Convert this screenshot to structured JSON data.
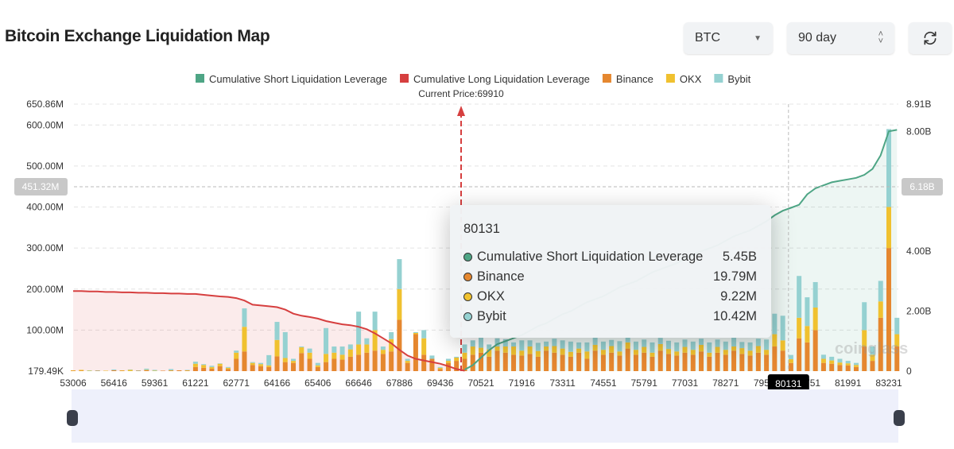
{
  "header": {
    "title": "Bitcoin Exchange Liquidation Map",
    "coin": "BTC",
    "range": "90 day",
    "refresh_icon": "refresh-icon"
  },
  "tooltip": {
    "price": "80131",
    "rows": [
      {
        "label": "Cumulative Short Liquidation Leverage",
        "value": "5.45B",
        "color": "#4ea585"
      },
      {
        "label": "Binance",
        "value": "19.79M",
        "color": "#e5872f"
      },
      {
        "label": "OKX",
        "value": "9.22M",
        "color": "#f0c12f"
      },
      {
        "label": "Bybit",
        "value": "10.42M",
        "color": "#95d1d1"
      }
    ]
  },
  "chart_data": {
    "type": "bar",
    "legend": [
      {
        "name": "Cumulative Short Liquidation Leverage",
        "color": "#4ea585"
      },
      {
        "name": "Cumulative Long Liquidation Leverage",
        "color": "#d63f3f"
      },
      {
        "name": "Binance",
        "color": "#e5872f"
      },
      {
        "name": "OKX",
        "color": "#f0c12f"
      },
      {
        "name": "Bybit",
        "color": "#95d1d1"
      }
    ],
    "legend_position": "top",
    "current_price_label": "Current Price:69910",
    "current_price": 69910,
    "x_ticks": [
      "53006",
      "56416",
      "59361",
      "61221",
      "62771",
      "64166",
      "65406",
      "66646",
      "67886",
      "69436",
      "70521",
      "71916",
      "73311",
      "74551",
      "75791",
      "77031",
      "78271",
      "79511",
      "80131",
      "80751",
      "81991",
      "83231"
    ],
    "highlight_tick": "80131",
    "y_left_ticks": [
      "179.49K",
      "100.00M",
      "200.00M",
      "300.00M",
      "400.00M",
      "500.00M",
      "600.00M",
      "650.86M"
    ],
    "y_left_range_M": [
      0,
      650.86
    ],
    "y_right_ticks": [
      "0",
      "2.00B",
      "4.00B",
      "6.18B",
      "8.00B",
      "8.91B"
    ],
    "y_right_range_B": [
      0,
      8.91
    ],
    "crosshair": {
      "left": "451.32M",
      "right": "6.18B",
      "price": "80131"
    },
    "grid": true,
    "series": {
      "binance": [
        1,
        1,
        0,
        1,
        0,
        2,
        1,
        0,
        1,
        2,
        0,
        1,
        1,
        2,
        1,
        10,
        8,
        6,
        12,
        5,
        30,
        48,
        15,
        12,
        10,
        36,
        22,
        20,
        44,
        30,
        10,
        22,
        30,
        28,
        35,
        40,
        45,
        50,
        42,
        48,
        125,
        20,
        90,
        40,
        30,
        5,
        20,
        25,
        30,
        40,
        45,
        35,
        50,
        45,
        40,
        38,
        42,
        35,
        50,
        45,
        40,
        35,
        45,
        30,
        50,
        40,
        45,
        38,
        55,
        40,
        45,
        35,
        50,
        42,
        38,
        45,
        40,
        48,
        35,
        45,
        40,
        50,
        42,
        38,
        45,
        40,
        60,
        50,
        19.79,
        80,
        70,
        100,
        20,
        18,
        15,
        14,
        10,
        60,
        25,
        130,
        300,
        60
      ],
      "okx": [
        1,
        2,
        1,
        0,
        1,
        0,
        1,
        3,
        0,
        1,
        1,
        0,
        1,
        0,
        1,
        8,
        7,
        4,
        6,
        3,
        15,
        60,
        5,
        5,
        4,
        40,
        10,
        5,
        14,
        15,
        4,
        20,
        15,
        12,
        18,
        25,
        20,
        50,
        10,
        30,
        75,
        5,
        3,
        40,
        0,
        3,
        5,
        8,
        15,
        20,
        12,
        18,
        10,
        15,
        20,
        12,
        18,
        14,
        10,
        16,
        15,
        12,
        10,
        18,
        14,
        12,
        16,
        10,
        15,
        12,
        14,
        10,
        16,
        12,
        10,
        14,
        12,
        16,
        10,
        14,
        12,
        10,
        14,
        12,
        16,
        12,
        30,
        25,
        9.22,
        50,
        40,
        55,
        10,
        8,
        6,
        5,
        5,
        40,
        15,
        40,
        100,
        30
      ],
      "bybit": [
        0,
        0,
        1,
        1,
        0,
        2,
        0,
        1,
        1,
        3,
        2,
        0,
        3,
        0,
        1,
        5,
        2,
        3,
        1,
        2,
        5,
        45,
        2,
        3,
        25,
        44,
        63,
        5,
        2,
        10,
        6,
        63,
        15,
        20,
        12,
        80,
        15,
        45,
        8,
        17,
        73,
        5,
        2,
        20,
        8,
        2,
        5,
        2,
        20,
        15,
        25,
        12,
        20,
        18,
        10,
        25,
        15,
        20,
        12,
        18,
        20,
        25,
        15,
        22,
        18,
        20,
        15,
        25,
        12,
        20,
        18,
        25,
        15,
        20,
        22,
        18,
        20,
        15,
        25,
        18,
        20,
        22,
        15,
        20,
        18,
        25,
        50,
        60,
        10.42,
        102,
        70,
        62,
        10,
        9,
        9,
        6,
        5,
        68,
        20,
        50,
        190,
        40
      ],
      "cum_long_M": [
        195,
        195,
        194,
        194,
        193,
        193,
        192,
        192,
        191,
        191,
        190,
        190,
        189,
        189,
        188,
        188,
        186,
        184,
        182,
        181,
        178,
        172,
        162,
        160,
        158,
        156,
        150,
        140,
        135,
        132,
        128,
        122,
        118,
        114,
        112,
        108,
        102,
        92,
        80,
        68,
        52,
        38,
        30,
        26,
        22,
        18,
        12,
        5,
        1,
        null,
        null,
        null,
        null,
        null,
        null,
        null,
        null,
        null,
        null,
        null,
        null,
        null,
        null,
        null,
        null,
        null,
        null,
        null,
        null,
        null,
        null,
        null,
        null,
        null,
        null,
        null,
        null,
        null,
        null,
        null,
        null,
        null,
        null,
        null,
        null,
        null,
        null,
        null,
        null,
        null,
        null,
        null,
        null,
        null,
        null,
        null,
        null,
        null,
        null,
        null,
        null,
        null
      ],
      "cum_short_B": [
        null,
        null,
        null,
        null,
        null,
        null,
        null,
        null,
        null,
        null,
        null,
        null,
        null,
        null,
        null,
        null,
        null,
        null,
        null,
        null,
        null,
        null,
        null,
        null,
        null,
        null,
        null,
        null,
        null,
        null,
        null,
        null,
        null,
        null,
        null,
        null,
        null,
        null,
        null,
        null,
        null,
        null,
        null,
        null,
        null,
        null,
        null,
        null,
        0.05,
        0.2,
        0.45,
        0.7,
        0.9,
        1.0,
        1.1,
        1.2,
        1.35,
        1.5,
        1.6,
        1.75,
        1.9,
        2.0,
        2.15,
        2.3,
        2.4,
        2.5,
        2.65,
        2.8,
        2.9,
        3.0,
        3.15,
        3.3,
        3.4,
        3.5,
        3.6,
        3.75,
        3.9,
        4.0,
        4.1,
        4.2,
        4.35,
        4.5,
        4.6,
        4.7,
        4.85,
        5.0,
        5.2,
        5.35,
        5.45,
        5.55,
        5.9,
        6.1,
        6.2,
        6.3,
        6.35,
        6.4,
        6.45,
        6.55,
        6.75,
        7.2,
        8.0,
        8.05
      ]
    }
  },
  "watermark": "coinglass"
}
